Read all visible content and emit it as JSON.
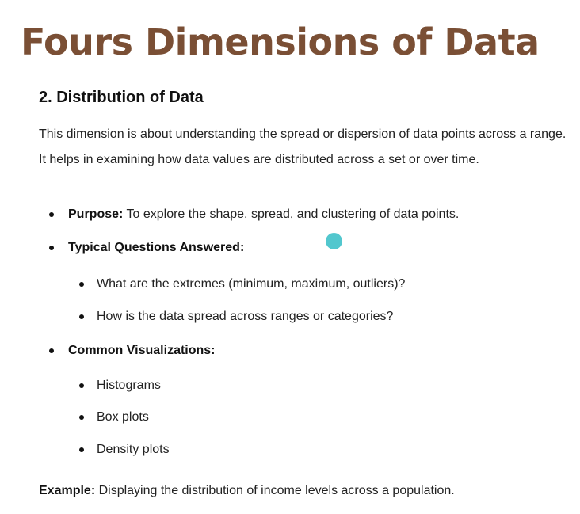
{
  "title": "Fours Dimensions of Data",
  "section": {
    "heading": "2. Distribution of Data",
    "intro": "This dimension is about understanding the spread or dispersion of data points across a range. It helps in examining how data values are distributed across a set or over time."
  },
  "bullets": {
    "purpose_label": "Purpose:",
    "purpose_text": " To explore the shape, spread, and clustering of data points.",
    "questions_label": "Typical Questions Answered:",
    "questions": [
      "What are the extremes (minimum, maximum, outliers)?",
      "How is the data spread across ranges or categories?"
    ],
    "visualizations_label": "Common Visualizations:",
    "visualizations": [
      "Histograms",
      "Box plots",
      "Density plots"
    ]
  },
  "example": {
    "label": "Example:",
    "text": " Displaying the distribution of income levels across a population."
  },
  "colors": {
    "title": "#7a4f35",
    "cursor": "#3fc1c9"
  }
}
